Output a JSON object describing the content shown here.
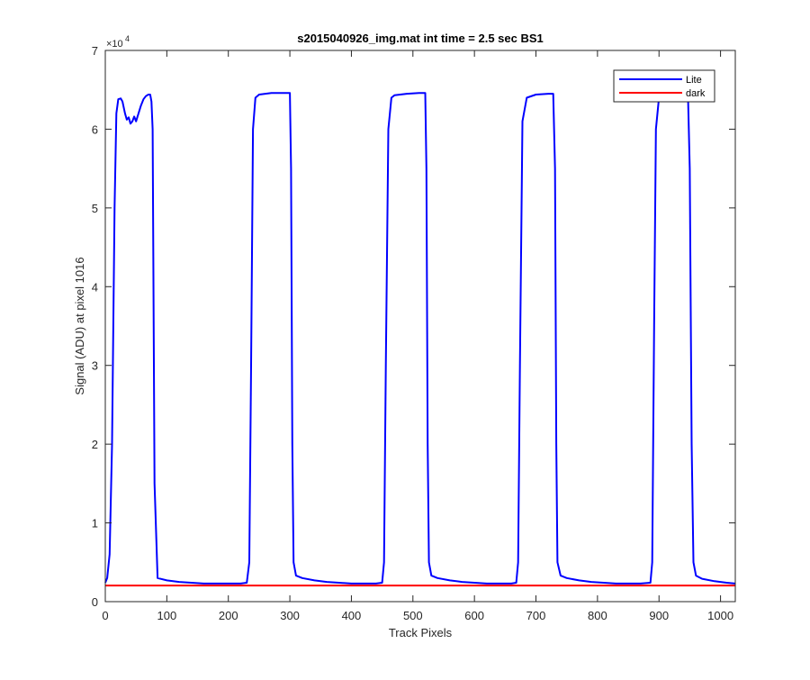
{
  "chart_data": {
    "type": "line",
    "title": "s2015040926_img.mat int time = 2.5 sec   BS1",
    "xlabel": "Track Pixels",
    "ylabel": "Signal (ADU) at pixel 1016",
    "xlim": [
      0,
      1024
    ],
    "ylim": [
      0,
      70000
    ],
    "xticks": [
      0,
      100,
      200,
      300,
      400,
      500,
      600,
      700,
      800,
      900,
      1000
    ],
    "yticks": [
      0,
      10000,
      20000,
      30000,
      40000,
      50000,
      60000,
      70000
    ],
    "y_tick_labels": [
      "0",
      "1",
      "2",
      "3",
      "4",
      "5",
      "6",
      "7"
    ],
    "y_exponent_base": "×10",
    "y_exponent_power": "4",
    "grid": false,
    "legend_position": "top-right",
    "series": [
      {
        "name": "Lite",
        "color": "#0000ff",
        "x": [
          0,
          3,
          7,
          11,
          15,
          18,
          21,
          25,
          28,
          32,
          35,
          38,
          41,
          44,
          47,
          50,
          54,
          58,
          62,
          66,
          70,
          73,
          75,
          77,
          80,
          85,
          100,
          120,
          140,
          160,
          180,
          200,
          220,
          230,
          234,
          237,
          240,
          244,
          250,
          270,
          290,
          300,
          302,
          304,
          306,
          310,
          320,
          340,
          360,
          380,
          400,
          420,
          440,
          450,
          453,
          456,
          460,
          465,
          470,
          490,
          510,
          520,
          522,
          524,
          526,
          530,
          540,
          560,
          580,
          600,
          620,
          640,
          660,
          668,
          671,
          674,
          678,
          685,
          700,
          720,
          728,
          731,
          733,
          735,
          740,
          750,
          770,
          790,
          810,
          830,
          850,
          870,
          886,
          889,
          892,
          895,
          900,
          910,
          930,
          944,
          947,
          950,
          953,
          956,
          960,
          970,
          990,
          1010,
          1024
        ],
        "y": [
          2400,
          3000,
          6000,
          20000,
          50000,
          62000,
          63800,
          63900,
          63500,
          62000,
          61200,
          61500,
          60700,
          61000,
          61600,
          61000,
          62000,
          63000,
          63800,
          64200,
          64400,
          64400,
          63500,
          60000,
          15000,
          3000,
          2700,
          2500,
          2400,
          2300,
          2300,
          2300,
          2300,
          2400,
          5000,
          30000,
          60000,
          64000,
          64400,
          64600,
          64600,
          64600,
          55000,
          20000,
          5000,
          3300,
          3000,
          2700,
          2500,
          2400,
          2300,
          2300,
          2300,
          2400,
          5000,
          30000,
          60000,
          64000,
          64300,
          64500,
          64600,
          64600,
          55000,
          20000,
          5000,
          3300,
          3000,
          2700,
          2500,
          2400,
          2300,
          2300,
          2300,
          2400,
          5000,
          30000,
          61000,
          64000,
          64400,
          64500,
          64500,
          55000,
          20000,
          5000,
          3300,
          3000,
          2700,
          2500,
          2400,
          2300,
          2300,
          2300,
          2400,
          5000,
          35000,
          60000,
          64000,
          64300,
          64500,
          64600,
          64500,
          55000,
          20000,
          5000,
          3300,
          2900,
          2600,
          2400,
          2300
        ]
      },
      {
        "name": "dark",
        "color": "#ff0000",
        "x": [
          0,
          1024
        ],
        "y": [
          2050,
          2050
        ]
      }
    ]
  }
}
